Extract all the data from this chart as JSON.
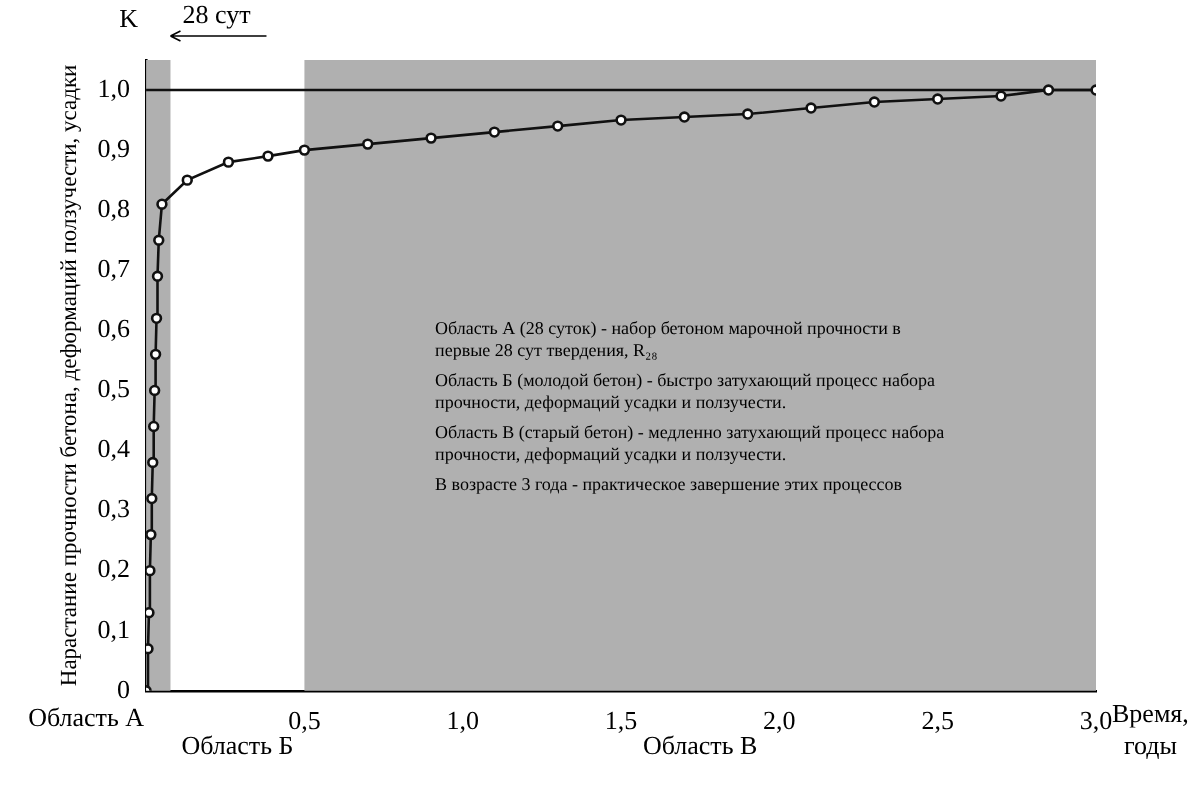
{
  "chart_data": {
    "type": "line",
    "xlabel": "Время, годы",
    "ylabel": "Нарастание прочности бетона, деформаций ползучести, усадки",
    "x": [
      0,
      0.006,
      0.009,
      0.012,
      0.015,
      0.018,
      0.021,
      0.024,
      0.027,
      0.03,
      0.033,
      0.036,
      0.04,
      0.05,
      0.13,
      0.26,
      0.385,
      0.5,
      0.7,
      0.9,
      1.1,
      1.3,
      1.5,
      1.7,
      1.9,
      2.1,
      2.3,
      2.5,
      2.7,
      2.85,
      3.0
    ],
    "series": [
      {
        "color": "#111111",
        "values": [
          0,
          0.07,
          0.13,
          0.2,
          0.26,
          0.32,
          0.38,
          0.44,
          0.5,
          0.56,
          0.62,
          0.69,
          0.75,
          0.81,
          0.85,
          0.88,
          0.89,
          0.9,
          0.91,
          0.92,
          0.93,
          0.94,
          0.95,
          0.955,
          0.96,
          0.97,
          0.98,
          0.985,
          0.99,
          1.0,
          1.0
        ]
      }
    ],
    "xlim": [
      0,
      3.0
    ],
    "ylim": [
      0,
      1.05
    ],
    "xticks": [
      {
        "value": 0.5,
        "label": "0,5"
      },
      {
        "value": 1.0,
        "label": "1,0"
      },
      {
        "value": 1.5,
        "label": "1,5"
      },
      {
        "value": 2.0,
        "label": "2,0"
      },
      {
        "value": 2.5,
        "label": "2,5"
      },
      {
        "value": 3.0,
        "label": "3,0"
      }
    ],
    "yticks": [
      0,
      {
        "value": 0.1,
        "label": "0,1"
      },
      {
        "value": 0.2,
        "label": "0,2"
      },
      {
        "value": 0.3,
        "label": "0,3"
      },
      {
        "value": 0.4,
        "label": "0,4"
      },
      {
        "value": 0.5,
        "label": "0,5"
      },
      {
        "value": 0.6,
        "label": "0,6"
      },
      {
        "value": 0.7,
        "label": "0,7"
      },
      {
        "value": 0.8,
        "label": "0,8"
      },
      {
        "value": 0.9,
        "label": "0,9"
      },
      {
        "value": 1.0,
        "label": "1,0"
      }
    ],
    "bands": [
      {
        "axis": "x",
        "from": 0,
        "to": 0.077,
        "label": "Область А",
        "color": "#b0b0b0"
      },
      {
        "axis": "x",
        "from": 0.5,
        "to": 3.0,
        "label": "Область В",
        "color": "#b0b0b0"
      }
    ],
    "ref_lines": [
      {
        "axis": "y",
        "value": 1.0,
        "color": "#111111"
      }
    ],
    "annotations": [
      "K",
      "28 сут",
      "Область Б",
      "Область А (28 суток) - набор бетоном марочной прочности в первые 28 сут твердения, R₂₈",
      "Область Б (молодой бетон) - быстро затухающий процесс набора прочности, деформаций усадки и ползучести.",
      "Область В (старый бетон) - медленно затухающий процесс набора прочности, деформаций усадки и ползучести.",
      "В возрасте 3 года - практическое завершение этих процессов"
    ],
    "marker": "circle",
    "line_style": "solid",
    "grid": false,
    "legend": false
  }
}
